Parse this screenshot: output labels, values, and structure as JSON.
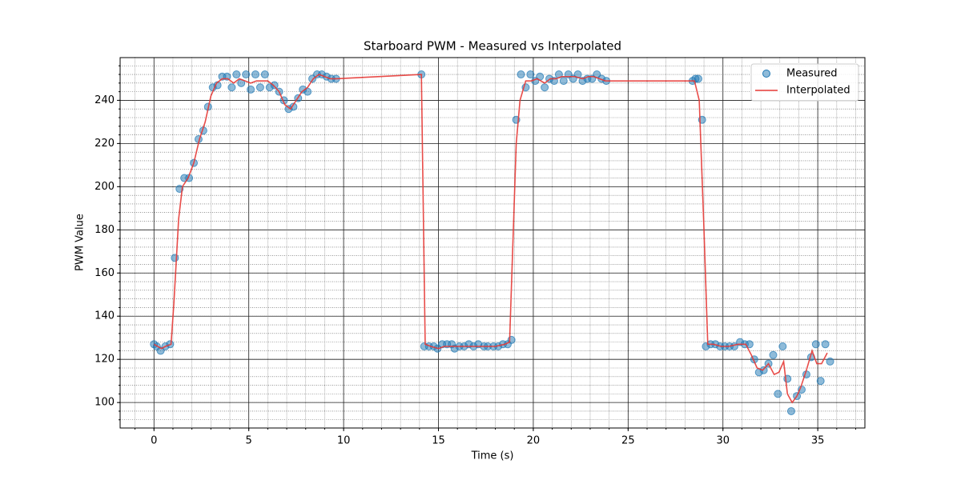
{
  "chart_data": {
    "type": "scatter",
    "title": "Starboard PWM - Measured vs Interpolated",
    "xlabel": "Time (s)",
    "ylabel": "PWM Value",
    "xlim": [
      -1.785,
      37.485
    ],
    "ylim": [
      88.2,
      259.8
    ],
    "xticks": [
      0,
      5,
      10,
      15,
      20,
      25,
      30,
      35
    ],
    "yticks": [
      100,
      120,
      140,
      160,
      180,
      200,
      220,
      240
    ],
    "grid": true,
    "minor_grid": true,
    "minor_divisions": {
      "x": 5,
      "y": 5
    },
    "legend": "upper right",
    "series": [
      {
        "name": "Measured",
        "style": "markers",
        "color": "#1f77b4",
        "x": [
          0,
          0.15,
          0.35,
          0.6,
          0.85,
          1.1,
          1.35,
          1.6,
          1.85,
          2.1,
          2.35,
          2.6,
          2.85,
          3.1,
          3.35,
          3.6,
          3.85,
          4.1,
          4.35,
          4.6,
          4.85,
          5.1,
          5.35,
          5.6,
          5.85,
          6.1,
          6.35,
          6.6,
          6.85,
          7.1,
          7.35,
          7.6,
          7.85,
          8.1,
          8.35,
          8.6,
          8.85,
          9.1,
          9.35,
          9.6,
          14.1,
          14.25,
          14.5,
          14.75,
          14.95,
          15.2,
          15.45,
          15.7,
          15.85,
          16.1,
          16.35,
          16.6,
          16.85,
          17.1,
          17.4,
          17.6,
          17.9,
          18.15,
          18.4,
          18.65,
          18.85,
          19.1,
          19.35,
          19.6,
          19.85,
          20.1,
          20.35,
          20.6,
          20.85,
          21.1,
          21.35,
          21.6,
          21.85,
          22.1,
          22.35,
          22.6,
          22.85,
          23.1,
          23.35,
          23.6,
          23.85,
          28.4,
          28.55,
          28.7,
          28.9,
          29.1,
          29.35,
          29.6,
          29.85,
          30.1,
          30.35,
          30.6,
          30.9,
          31.15,
          31.4,
          31.65,
          31.9,
          32.15,
          32.4,
          32.65,
          32.9,
          33.15,
          33.4,
          33.6,
          33.9,
          34.15,
          34.4,
          34.65,
          34.9,
          35.15,
          35.4,
          35.65
        ],
        "values": [
          127,
          126,
          124,
          126,
          127,
          167,
          199,
          204,
          204,
          211,
          222,
          226,
          237,
          246,
          247,
          251,
          251,
          246,
          252,
          248,
          252,
          245,
          252,
          246,
          252,
          246,
          247,
          244,
          240,
          236,
          237,
          241,
          245,
          244,
          250,
          252,
          252,
          251,
          250,
          250,
          252,
          126,
          126,
          126,
          125,
          127,
          127,
          127,
          125,
          126,
          126,
          127,
          126,
          127,
          126,
          126,
          126,
          126,
          127,
          127,
          129,
          231,
          252,
          246,
          252,
          249,
          251,
          246,
          250,
          249,
          252,
          249,
          252,
          250,
          252,
          249,
          250,
          250,
          252,
          250,
          249,
          249,
          250,
          250,
          231,
          126,
          127,
          127,
          126,
          126,
          126,
          126,
          128,
          127,
          127,
          120,
          114,
          115,
          118,
          122,
          104,
          126,
          111,
          96,
          103,
          106,
          113,
          121,
          127,
          110,
          127,
          119
        ]
      },
      {
        "name": "Interpolated",
        "style": "line",
        "color": "#e53935",
        "x": [
          0,
          0.2,
          0.4,
          0.6,
          0.9,
          1.05,
          1.3,
          1.5,
          1.8,
          2.1,
          2.4,
          2.7,
          3.0,
          3.3,
          3.6,
          3.9,
          4.2,
          4.5,
          4.8,
          5.1,
          5.4,
          5.7,
          6.0,
          6.3,
          6.6,
          6.9,
          7.2,
          7.5,
          7.8,
          8.1,
          8.4,
          8.7,
          9.0,
          9.3,
          9.6,
          14.1,
          14.3,
          14.6,
          15.0,
          15.3,
          15.6,
          16.0,
          16.5,
          17,
          17.5,
          18,
          18.5,
          18.75,
          19.1,
          19.3,
          19.6,
          19.9,
          20.2,
          20.6,
          20.9,
          21.2,
          21.5,
          21.9,
          22.2,
          22.6,
          22.9,
          23.2,
          23.5,
          23.8,
          28.5,
          28.75,
          29.0,
          29.2,
          29.5,
          29.9,
          30.3,
          30.8,
          31.2,
          31.5,
          31.8,
          32.1,
          32.4,
          32.7,
          32.95,
          33.2,
          33.4,
          33.65,
          33.9,
          34.1,
          34.4,
          34.7,
          34.95,
          35.2,
          35.5
        ],
        "values": [
          127,
          126,
          125,
          126,
          127,
          146,
          185,
          200,
          204,
          211,
          222,
          230,
          242,
          248,
          250,
          250,
          248,
          250,
          249,
          248,
          249,
          249,
          249,
          247,
          244,
          238,
          236,
          240,
          244,
          246,
          250,
          252,
          251,
          250,
          250,
          252,
          127,
          126,
          125,
          126,
          126,
          126,
          126,
          126,
          126,
          126,
          127,
          128,
          220,
          240,
          249,
          249,
          250,
          248,
          250,
          250,
          251,
          251,
          251,
          250,
          251,
          251,
          250,
          249,
          249,
          240,
          180,
          127,
          127,
          126,
          126,
          127,
          127,
          122,
          116,
          115,
          118,
          113,
          114,
          119,
          104,
          100,
          103,
          107,
          115,
          124,
          118,
          118,
          123
        ]
      }
    ]
  }
}
